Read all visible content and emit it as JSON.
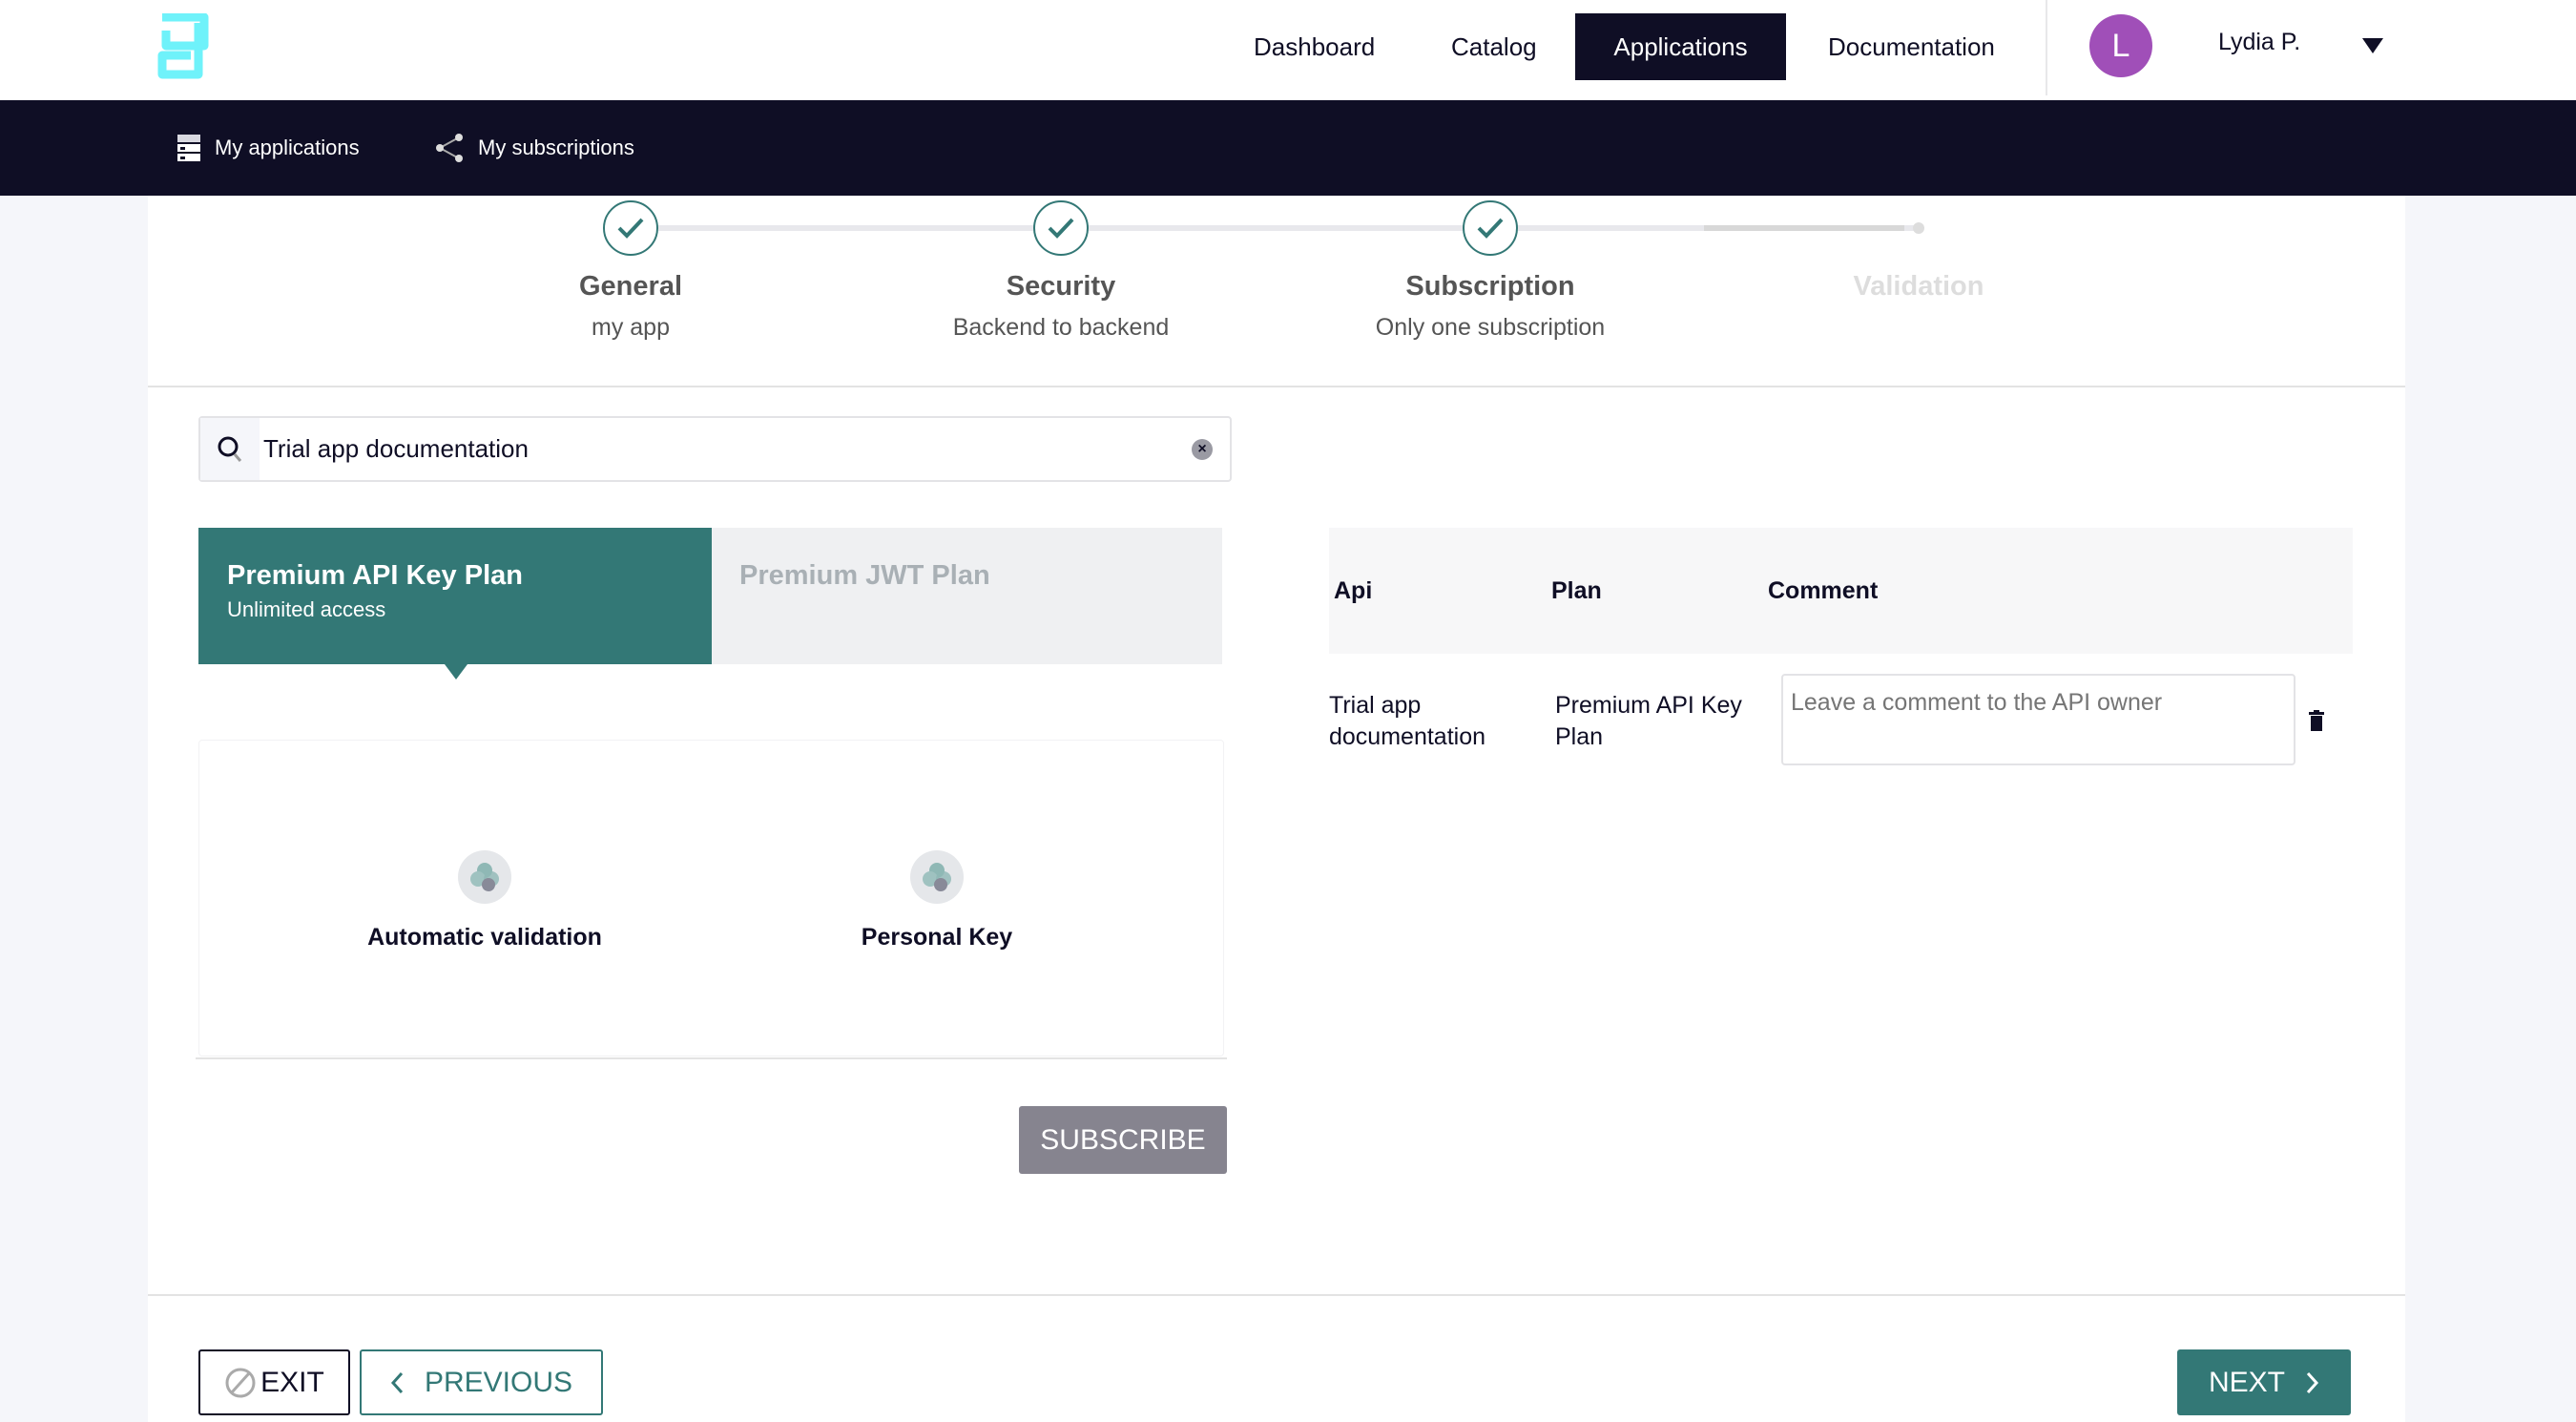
{
  "header": {
    "nav": [
      "Dashboard",
      "Catalog",
      "Applications",
      "Documentation"
    ],
    "active_nav": "Applications",
    "user": {
      "initial": "L",
      "name": "Lydia P.",
      "avatar_color": "#a04fb8"
    }
  },
  "subnav": {
    "items": [
      "My applications",
      "My subscriptions"
    ]
  },
  "stepper": {
    "steps": [
      {
        "title": "General",
        "subtitle": "my app",
        "done": true
      },
      {
        "title": "Security",
        "subtitle": "Backend to backend",
        "done": true
      },
      {
        "title": "Subscription",
        "subtitle": "Only one subscription",
        "done": true
      },
      {
        "title": "Validation",
        "subtitle": "",
        "done": false
      }
    ]
  },
  "search": {
    "value": "Trial app documentation"
  },
  "plans": [
    {
      "name": "Premium API Key Plan",
      "description": "Unlimited access",
      "selected": true
    },
    {
      "name": "Premium JWT Plan",
      "description": "",
      "selected": false
    }
  ],
  "plan_details": [
    "Automatic validation",
    "Personal Key"
  ],
  "subscribe_label": "SUBSCRIBE",
  "table": {
    "headers": [
      "Api",
      "Plan",
      "Comment"
    ],
    "rows": [
      {
        "api": "Trial app documentation",
        "plan": "Premium API Key Plan",
        "comment_placeholder": "Leave a comment to the API owner"
      }
    ]
  },
  "footer": {
    "exit": "EXIT",
    "previous": "PREVIOUS",
    "next": "NEXT"
  },
  "colors": {
    "accent": "#337876",
    "dark": "#0f0e25",
    "logo": "#6ff2fa",
    "disabled": "#86848f"
  }
}
